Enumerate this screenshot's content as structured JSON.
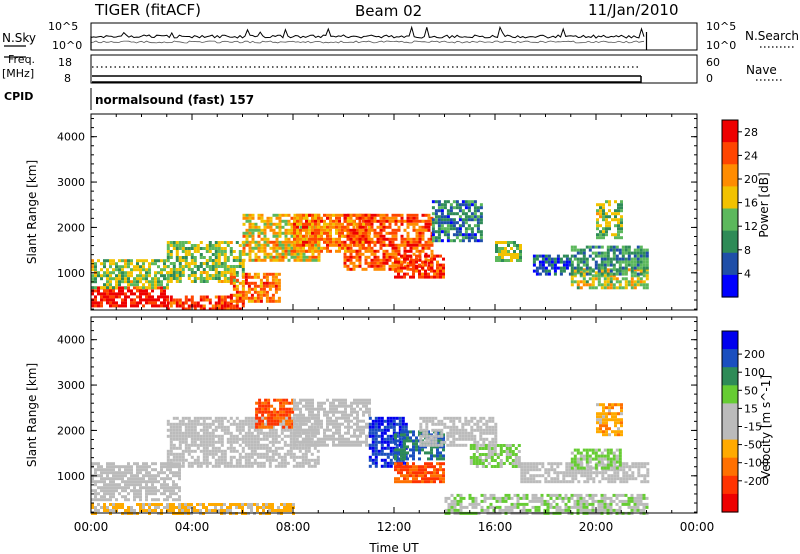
{
  "header": {
    "radar": "TIGER (fitACF)",
    "beam": "Beam 02",
    "date": "11/Jan/2010"
  },
  "nsky_panel": {
    "left_label": "N.Sky",
    "right_label": "N.Search",
    "left_ticks": [
      "10^5",
      "10^0"
    ],
    "right_ticks": [
      "10^5",
      "10^0"
    ]
  },
  "freq_panel": {
    "left_label_1": "Freq.",
    "left_label_2": "[MHz]",
    "right_label": "Nave",
    "left_ticks": [
      "18",
      "8"
    ],
    "right_ticks": [
      "60",
      "0"
    ]
  },
  "cpid_panel": {
    "label": "CPID",
    "value": "normalsound (fast) 157"
  },
  "colors": {
    "power_scale": [
      "#0000ff",
      "#1f4fa8",
      "#2e8b57",
      "#5cb85c",
      "#f2c200",
      "#ff8c00",
      "#ff4500",
      "#ee0000"
    ],
    "velocity_scale": [
      "#0000ee",
      "#1a4fbf",
      "#2e8b57",
      "#66cc33",
      "#bbbbbb",
      "#bbbbbb",
      "#ffaa00",
      "#ff7000",
      "#ff3300",
      "#ee0000"
    ]
  },
  "chart_data": [
    {
      "type": "heatmap",
      "title": "",
      "xlabel": "",
      "ylabel": "Slant Range [km]",
      "xlim": [
        "00:00",
        "24:00"
      ],
      "ylim": [
        180,
        4500
      ],
      "x_tick_labels": [],
      "y_ticks": [
        1000,
        2000,
        3000,
        4000
      ],
      "colorbar": {
        "label": "Power [dB]",
        "ticks": [
          4,
          8,
          12,
          16,
          20,
          24,
          28
        ],
        "range": [
          0,
          30
        ]
      },
      "data_end_time": "22:00",
      "regions": [
        {
          "t": [
            0,
            3
          ],
          "range": [
            250,
            700
          ],
          "value": 28
        },
        {
          "t": [
            0,
            3
          ],
          "range": [
            700,
            1300
          ],
          "value": 14
        },
        {
          "t": [
            3,
            6
          ],
          "range": [
            200,
            500
          ],
          "value": 26
        },
        {
          "t": [
            3,
            6
          ],
          "range": [
            800,
            1700
          ],
          "value": 14
        },
        {
          "t": [
            5.5,
            7.5
          ],
          "range": [
            400,
            1000
          ],
          "value": 22
        },
        {
          "t": [
            6,
            9
          ],
          "range": [
            1300,
            2300
          ],
          "value": 18
        },
        {
          "t": [
            8,
            11
          ],
          "range": [
            1500,
            2300
          ],
          "value": 22
        },
        {
          "t": [
            10,
            13.5
          ],
          "range": [
            1100,
            2300
          ],
          "value": 24
        },
        {
          "t": [
            12,
            14
          ],
          "range": [
            900,
            1400
          ],
          "value": 26
        },
        {
          "t": [
            13.5,
            15.5
          ],
          "range": [
            1700,
            2600
          ],
          "value": 8
        },
        {
          "t": [
            16,
            17
          ],
          "range": [
            1300,
            1700
          ],
          "value": 14
        },
        {
          "t": [
            17.5,
            19
          ],
          "range": [
            1000,
            1400
          ],
          "value": 6
        },
        {
          "t": [
            19,
            22
          ],
          "range": [
            700,
            1100
          ],
          "value": 16
        },
        {
          "t": [
            19,
            22
          ],
          "range": [
            1000,
            1600
          ],
          "value": 10
        },
        {
          "t": [
            20,
            21
          ],
          "range": [
            1800,
            2600
          ],
          "value": 14
        }
      ]
    },
    {
      "type": "heatmap",
      "title": "",
      "xlabel": "Time UT",
      "ylabel": "Slant Range [km]",
      "xlim": [
        "00:00",
        "24:00"
      ],
      "ylim": [
        180,
        4500
      ],
      "x_tick_labels": [
        "00:00",
        "04:00",
        "08:00",
        "12:00",
        "16:00",
        "20:00",
        "00:00"
      ],
      "y_ticks": [
        1000,
        2000,
        3000,
        4000
      ],
      "colorbar": {
        "label": "Velocity [m s^-1]",
        "ticks": [
          200,
          100,
          50,
          15,
          -15,
          -50,
          -100,
          -200
        ],
        "range": [
          -250,
          250
        ]
      },
      "data_end_time": "22:00",
      "regions": [
        {
          "t": [
            0,
            3.5
          ],
          "range": [
            500,
            1300
          ],
          "value": 0
        },
        {
          "t": [
            0,
            8
          ],
          "range": [
            200,
            400
          ],
          "value": -60
        },
        {
          "t": [
            3,
            9
          ],
          "range": [
            1200,
            2300
          ],
          "value": 0
        },
        {
          "t": [
            6.5,
            8
          ],
          "range": [
            2100,
            2700
          ],
          "value": -150
        },
        {
          "t": [
            8,
            11
          ],
          "range": [
            1700,
            2700
          ],
          "value": 0
        },
        {
          "t": [
            11,
            12.5
          ],
          "range": [
            1200,
            2300
          ],
          "value": 200
        },
        {
          "t": [
            12,
            14
          ],
          "range": [
            1400,
            2000
          ],
          "value": 150
        },
        {
          "t": [
            12,
            14
          ],
          "range": [
            900,
            1300
          ],
          "value": -150
        },
        {
          "t": [
            13,
            16
          ],
          "range": [
            1700,
            2300
          ],
          "value": 0
        },
        {
          "t": [
            15,
            17
          ],
          "range": [
            1200,
            1700
          ],
          "value": 60
        },
        {
          "t": [
            14,
            22
          ],
          "range": [
            200,
            600
          ],
          "value": 40
        },
        {
          "t": [
            17,
            22
          ],
          "range": [
            900,
            1300
          ],
          "value": 0
        },
        {
          "t": [
            19,
            21
          ],
          "range": [
            1200,
            1600
          ],
          "value": 60
        },
        {
          "t": [
            20,
            21
          ],
          "range": [
            1900,
            2600
          ],
          "value": -80
        }
      ]
    }
  ]
}
